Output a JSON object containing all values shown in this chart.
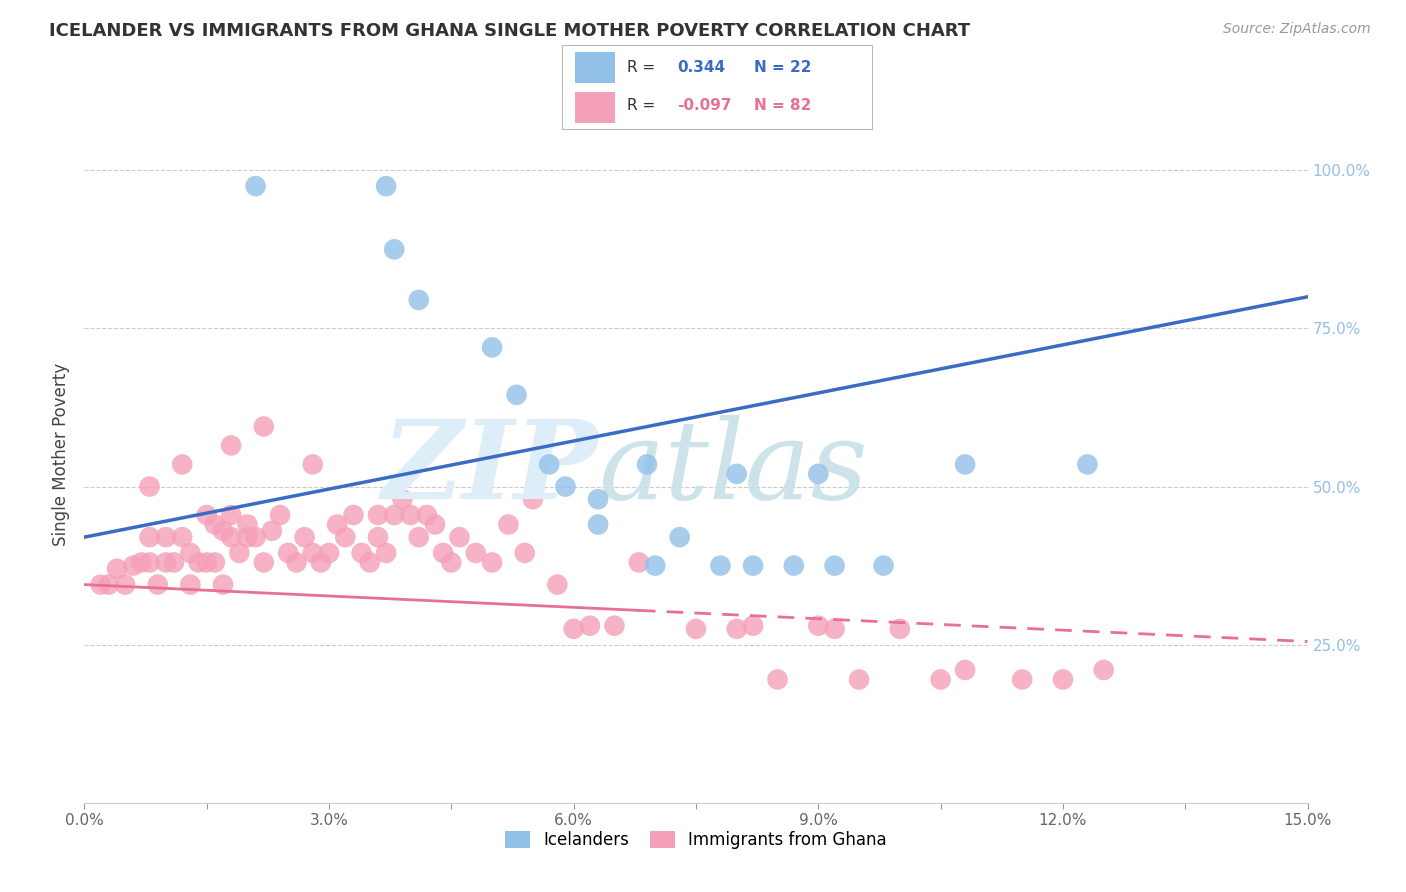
{
  "title": "ICELANDER VS IMMIGRANTS FROM GHANA SINGLE MOTHER POVERTY CORRELATION CHART",
  "source": "Source: ZipAtlas.com",
  "ylabel": "Single Mother Poverty",
  "xlim": [
    0.0,
    0.15
  ],
  "ylim": [
    0.0,
    1.1
  ],
  "xticks": [
    0.0,
    0.015,
    0.03,
    0.045,
    0.06,
    0.075,
    0.09,
    0.105,
    0.12,
    0.135,
    0.15
  ],
  "xtick_labels": [
    "0.0%",
    "",
    "3.0%",
    "",
    "6.0%",
    "",
    "9.0%",
    "",
    "12.0%",
    "",
    "15.0%"
  ],
  "yticks_right": [
    0.25,
    0.5,
    0.75,
    1.0
  ],
  "ytick_labels_right": [
    "25.0%",
    "50.0%",
    "75.0%",
    "100.0%"
  ],
  "blue_color": "#92C0E8",
  "pink_color": "#F4A0B8",
  "blue_line_color": "#3B6CC4",
  "pink_line_color": "#E87090",
  "R_blue": 0.344,
  "N_blue": 22,
  "R_pink": -0.097,
  "N_pink": 82,
  "legend_label_blue": "Icelanders",
  "legend_label_pink": "Immigrants from Ghana",
  "background_color": "#FFFFFF",
  "blue_line_x0": 0.0,
  "blue_line_y0": 0.42,
  "blue_line_x1": 0.15,
  "blue_line_y1": 0.8,
  "pink_line_x0": 0.0,
  "pink_line_y0": 0.345,
  "pink_line_solid_x1": 0.068,
  "pink_line_x1": 0.15,
  "pink_line_y1": 0.255,
  "blue_scatter_x": [
    0.021,
    0.037,
    0.041,
    0.053,
    0.057,
    0.063,
    0.063,
    0.069,
    0.073,
    0.078,
    0.082,
    0.087,
    0.092,
    0.098,
    0.108,
    0.123,
    0.038,
    0.05,
    0.059,
    0.07,
    0.08,
    0.09
  ],
  "blue_scatter_y": [
    0.975,
    0.975,
    0.795,
    0.645,
    0.535,
    0.48,
    0.44,
    0.535,
    0.42,
    0.375,
    0.375,
    0.375,
    0.375,
    0.375,
    0.535,
    0.535,
    0.875,
    0.72,
    0.5,
    0.375,
    0.52,
    0.52
  ],
  "pink_scatter_x": [
    0.002,
    0.003,
    0.004,
    0.005,
    0.006,
    0.007,
    0.008,
    0.008,
    0.009,
    0.01,
    0.01,
    0.011,
    0.012,
    0.013,
    0.013,
    0.014,
    0.015,
    0.015,
    0.016,
    0.016,
    0.017,
    0.017,
    0.018,
    0.018,
    0.019,
    0.02,
    0.02,
    0.021,
    0.022,
    0.023,
    0.024,
    0.025,
    0.026,
    0.027,
    0.028,
    0.029,
    0.03,
    0.031,
    0.032,
    0.033,
    0.034,
    0.035,
    0.036,
    0.036,
    0.037,
    0.038,
    0.039,
    0.04,
    0.041,
    0.042,
    0.043,
    0.044,
    0.045,
    0.046,
    0.048,
    0.05,
    0.052,
    0.054,
    0.055,
    0.058,
    0.06,
    0.062,
    0.065,
    0.068,
    0.075,
    0.08,
    0.082,
    0.085,
    0.09,
    0.092,
    0.095,
    0.1,
    0.105,
    0.108,
    0.115,
    0.12,
    0.125,
    0.008,
    0.012,
    0.018,
    0.022,
    0.028
  ],
  "pink_scatter_y": [
    0.345,
    0.345,
    0.37,
    0.345,
    0.375,
    0.38,
    0.38,
    0.42,
    0.345,
    0.38,
    0.42,
    0.38,
    0.42,
    0.345,
    0.395,
    0.38,
    0.455,
    0.38,
    0.38,
    0.44,
    0.345,
    0.43,
    0.42,
    0.455,
    0.395,
    0.42,
    0.44,
    0.42,
    0.38,
    0.43,
    0.455,
    0.395,
    0.38,
    0.42,
    0.395,
    0.38,
    0.395,
    0.44,
    0.42,
    0.455,
    0.395,
    0.38,
    0.42,
    0.455,
    0.395,
    0.455,
    0.48,
    0.455,
    0.42,
    0.455,
    0.44,
    0.395,
    0.38,
    0.42,
    0.395,
    0.38,
    0.44,
    0.395,
    0.48,
    0.345,
    0.275,
    0.28,
    0.28,
    0.38,
    0.275,
    0.275,
    0.28,
    0.195,
    0.28,
    0.275,
    0.195,
    0.275,
    0.195,
    0.21,
    0.195,
    0.195,
    0.21,
    0.5,
    0.535,
    0.565,
    0.595,
    0.535
  ]
}
